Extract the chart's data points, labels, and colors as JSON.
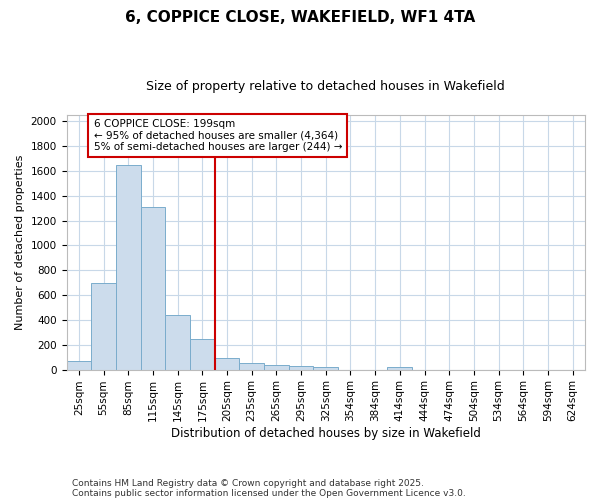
{
  "title": "6, COPPICE CLOSE, WAKEFIELD, WF1 4TA",
  "subtitle": "Size of property relative to detached houses in Wakefield",
  "xlabel": "Distribution of detached houses by size in Wakefield",
  "ylabel": "Number of detached properties",
  "categories": [
    "25sqm",
    "55sqm",
    "85sqm",
    "115sqm",
    "145sqm",
    "175sqm",
    "205sqm",
    "235sqm",
    "265sqm",
    "295sqm",
    "325sqm",
    "354sqm",
    "384sqm",
    "414sqm",
    "444sqm",
    "474sqm",
    "504sqm",
    "534sqm",
    "564sqm",
    "594sqm",
    "624sqm"
  ],
  "values": [
    70,
    700,
    1650,
    1310,
    440,
    250,
    95,
    55,
    35,
    25,
    20,
    0,
    0,
    20,
    0,
    0,
    0,
    0,
    0,
    0,
    0
  ],
  "bar_color": "#ccdcec",
  "bar_edge_color": "#7aaccc",
  "marker_label": "6 COPPICE CLOSE: 199sqm",
  "annotation_line1": "← 95% of detached houses are smaller (4,364)",
  "annotation_line2": "5% of semi-detached houses are larger (244) →",
  "vline_color": "#cc0000",
  "annotation_box_edge": "#cc0000",
  "annotation_box_face": "#ffffff",
  "ylim": [
    0,
    2050
  ],
  "grid_color": "#c8d8e8",
  "footnote1": "Contains HM Land Registry data © Crown copyright and database right 2025.",
  "footnote2": "Contains public sector information licensed under the Open Government Licence v3.0.",
  "bg_color": "#ffffff",
  "title_fontsize": 11,
  "subtitle_fontsize": 9,
  "ylabel_fontsize": 8,
  "xlabel_fontsize": 8.5,
  "tick_fontsize": 7.5,
  "annot_fontsize": 7.5,
  "footnote_fontsize": 6.5
}
